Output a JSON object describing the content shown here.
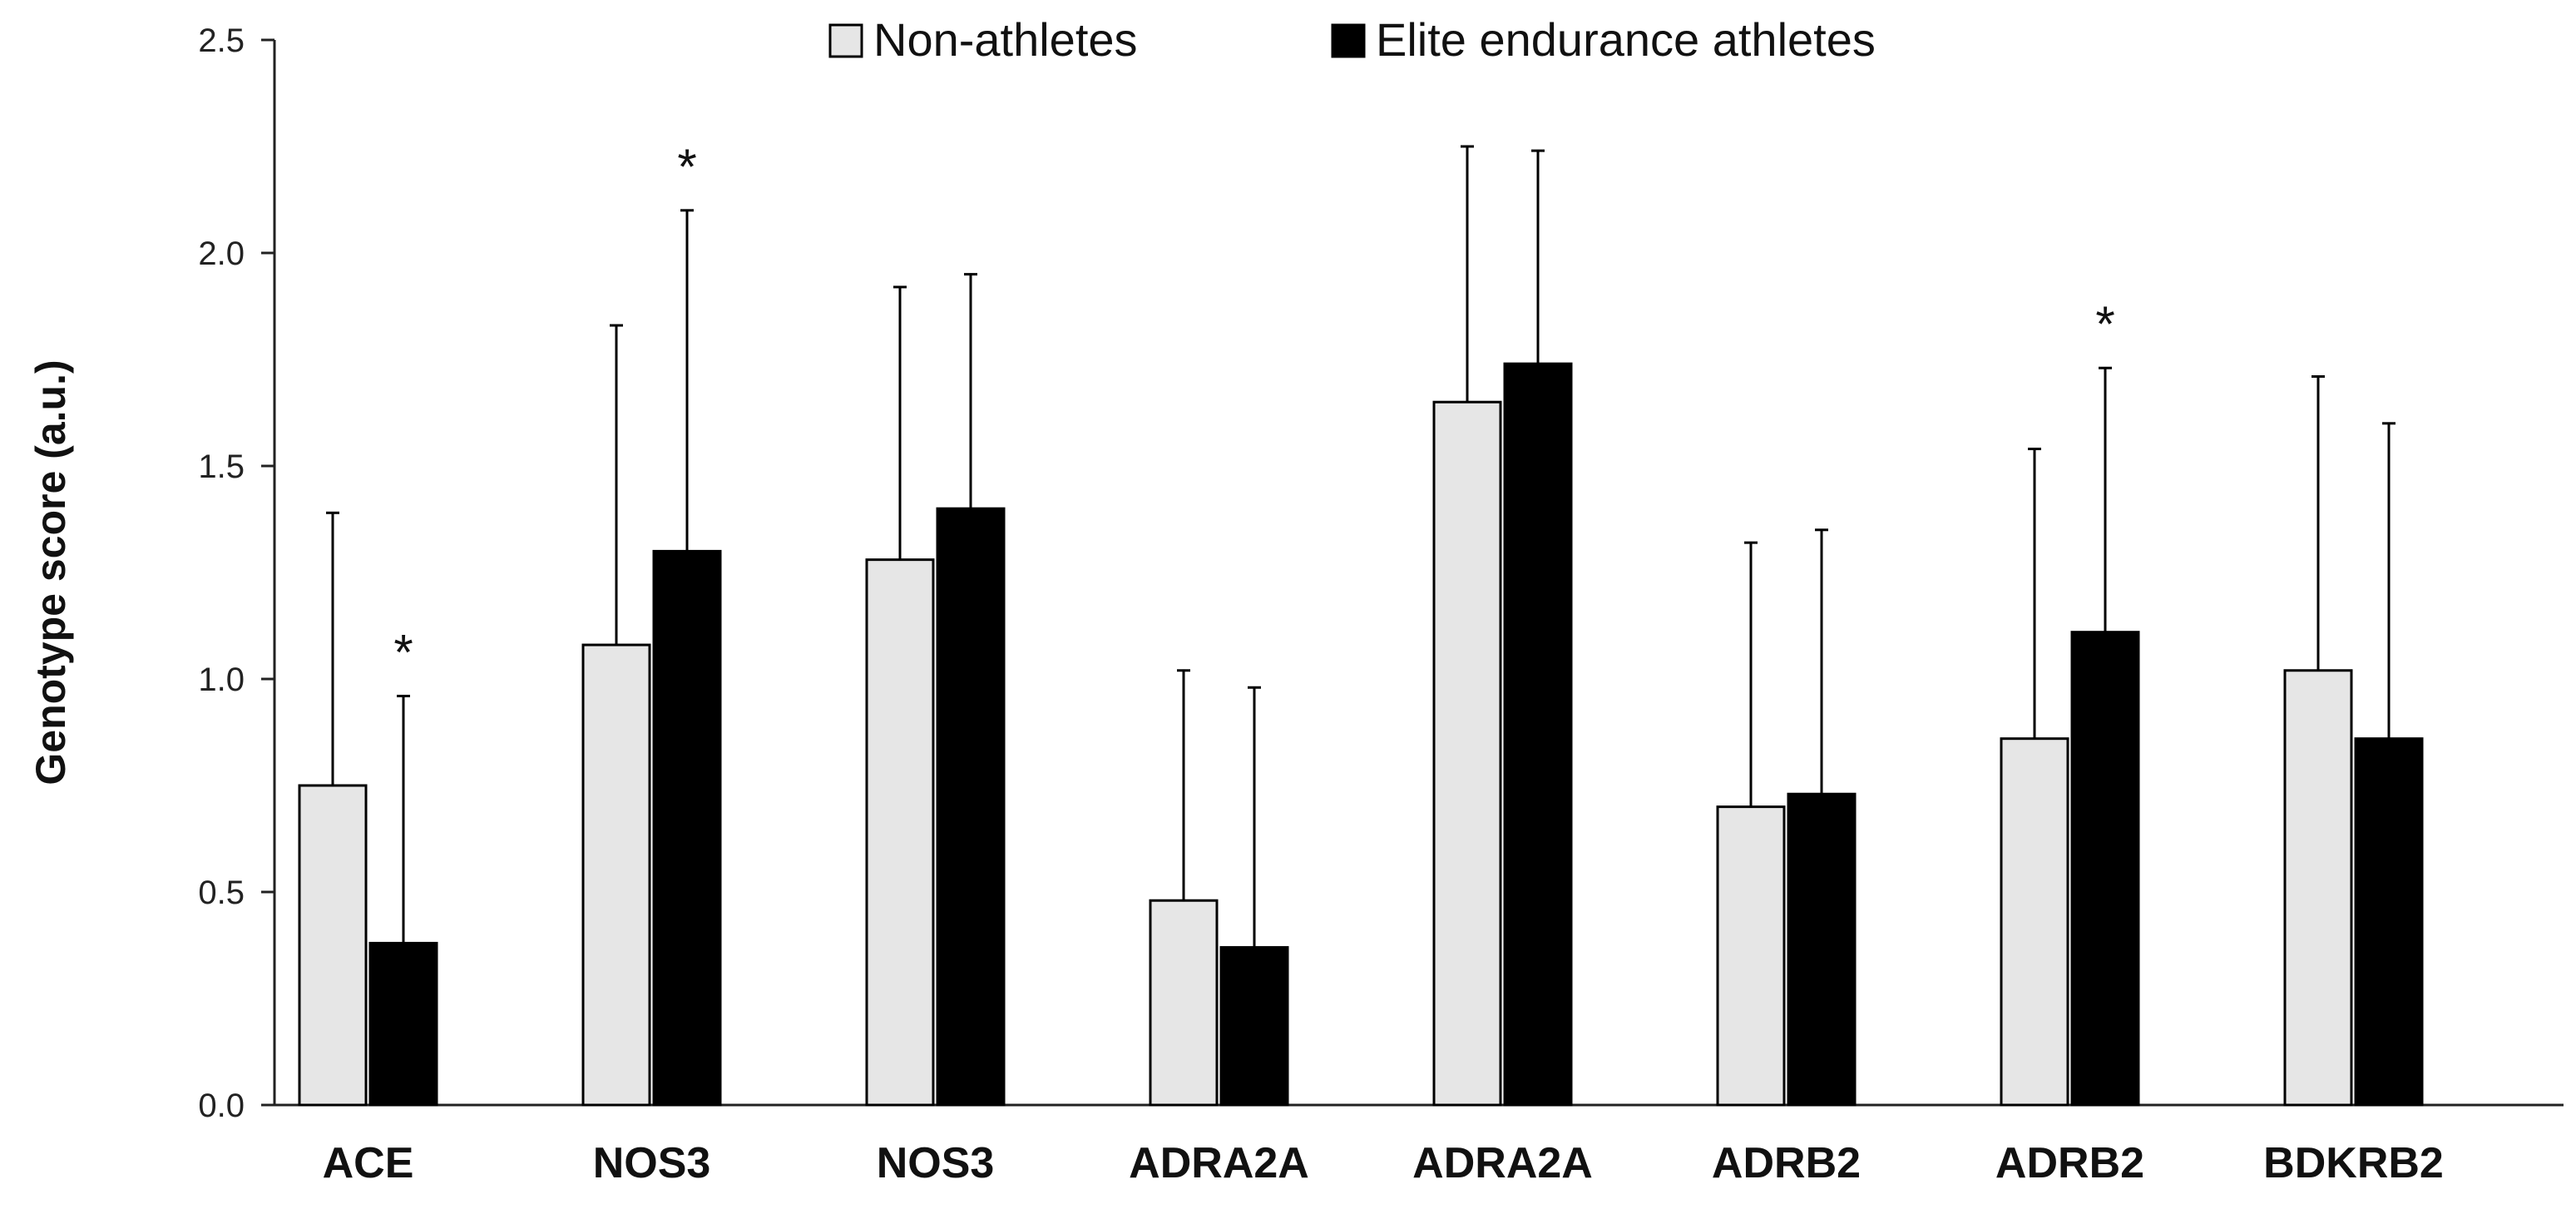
{
  "chart_data": {
    "type": "bar",
    "title": "",
    "xlabel": "",
    "ylabel": "Genotype score (a.u.)",
    "ylim": [
      0,
      2.5
    ],
    "yticks": [
      "0.0",
      "0.5",
      "1.0",
      "1.5",
      "2.0",
      "2.5"
    ],
    "grid": false,
    "legend_position": "top-center",
    "categories": [
      "ACE",
      "NOS3",
      "NOS3",
      "ADRA2A",
      "ADRA2A",
      "ADRB2",
      "ADRB2",
      "BDKRB2"
    ],
    "series": [
      {
        "name": "Non-athletes",
        "color": "#e6e6e6",
        "values": [
          0.75,
          1.08,
          1.28,
          0.48,
          1.65,
          0.7,
          0.86,
          1.02
        ],
        "error_upper": [
          1.39,
          1.83,
          1.92,
          1.02,
          2.25,
          1.32,
          1.54,
          1.71
        ],
        "significant": [
          false,
          false,
          false,
          false,
          false,
          false,
          false,
          false
        ]
      },
      {
        "name": "Elite endurance athletes",
        "color": "#000000",
        "values": [
          0.38,
          1.3,
          1.4,
          0.37,
          1.74,
          0.73,
          1.11,
          0.86
        ],
        "error_upper": [
          0.96,
          2.1,
          1.95,
          0.98,
          2.24,
          1.35,
          1.73,
          1.6
        ],
        "significant": [
          true,
          true,
          false,
          false,
          false,
          false,
          true,
          false
        ]
      }
    ],
    "significance_marker": "*"
  }
}
